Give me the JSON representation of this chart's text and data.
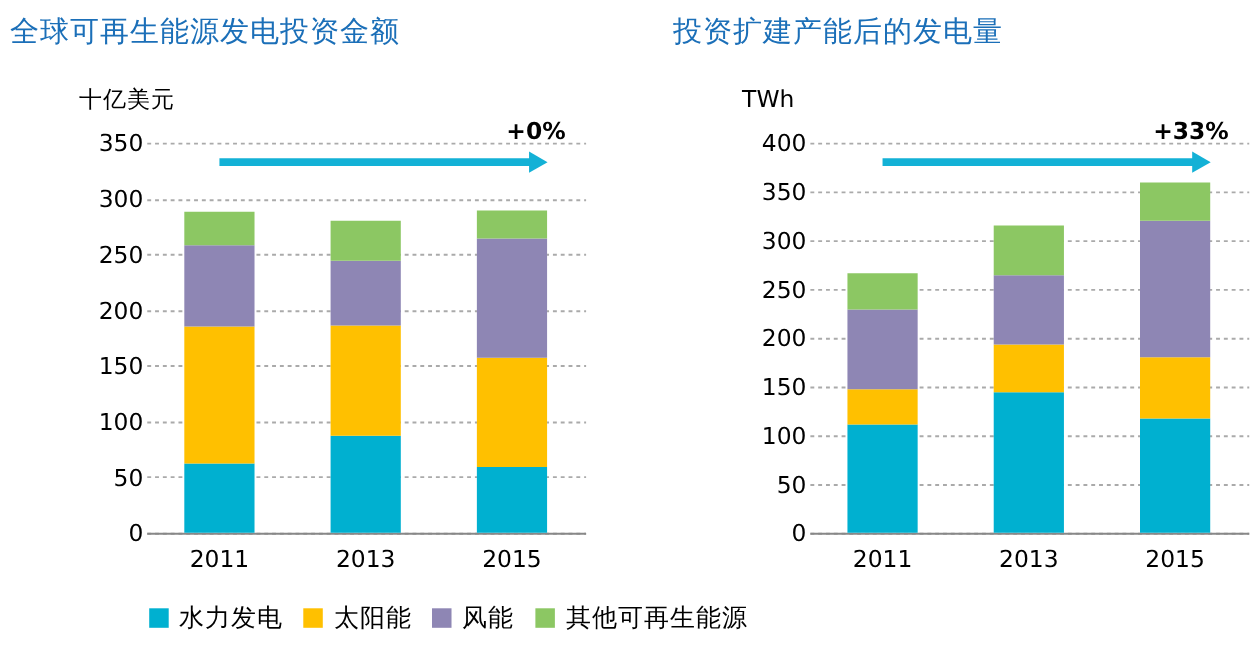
{
  "chart_data": [
    {
      "type": "bar",
      "title": "全球可再生能源发电投资金额",
      "ylabel": "十亿美元",
      "categories": [
        "2011",
        "2013",
        "2015"
      ],
      "stacked": true,
      "ylim": [
        0,
        350
      ],
      "yticks": [
        0,
        50,
        100,
        150,
        200,
        250,
        300,
        350
      ],
      "grid": "y",
      "legend": "bottom",
      "annotations": [
        "+0%"
      ],
      "series": [
        {
          "name": "水力发电",
          "color": "#00b0d0",
          "values": [
            62,
            87,
            59
          ]
        },
        {
          "name": "太阳能",
          "color": "#ffc000",
          "values": [
            123,
            99,
            98
          ]
        },
        {
          "name": "风能",
          "color": "#8e86b4",
          "values": [
            73,
            58,
            107
          ]
        },
        {
          "name": "其他可再生能源",
          "color": "#8cc763",
          "values": [
            30,
            36,
            25
          ]
        }
      ]
    },
    {
      "type": "bar",
      "title": "投资扩建产能后的发电量",
      "ylabel": "TWh",
      "categories": [
        "2011",
        "2013",
        "2015"
      ],
      "stacked": true,
      "ylim": [
        0,
        400
      ],
      "yticks": [
        0,
        50,
        100,
        150,
        200,
        250,
        300,
        350,
        400
      ],
      "grid": "y",
      "legend": "bottom",
      "annotations": [
        "+33%"
      ],
      "series": [
        {
          "name": "水力发电",
          "color": "#00b0d0",
          "values": [
            111,
            144,
            117
          ]
        },
        {
          "name": "太阳能",
          "color": "#ffc000",
          "values": [
            36,
            49,
            63
          ]
        },
        {
          "name": "风能",
          "color": "#8e86b4",
          "values": [
            82,
            71,
            140
          ]
        },
        {
          "name": "其他可再生能源",
          "color": "#8cc763",
          "values": [
            37,
            51,
            39
          ]
        }
      ]
    }
  ]
}
